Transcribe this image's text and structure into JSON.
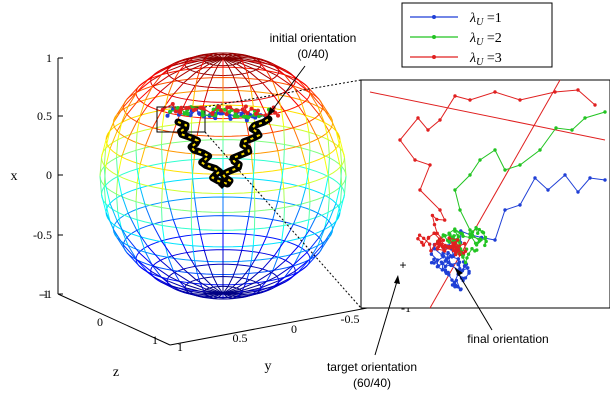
{
  "chart_data": {
    "type": "line",
    "projection": "3d-sphere",
    "grid": "spherical wireframe colored by x (blue at -1, red at +1)",
    "axes": {
      "x": {
        "label": "x",
        "ticks": [
          "1",
          "0.5",
          "0",
          "-0.5",
          "-1"
        ],
        "range": [
          -1,
          1
        ]
      },
      "y": {
        "label": "y",
        "ticks": [
          "1",
          "0.5",
          "0",
          "-0.5",
          "-1"
        ],
        "range": [
          -1,
          1
        ]
      },
      "z": {
        "label": "z",
        "ticks": [
          "-1",
          "0",
          "1"
        ],
        "range": [
          -1,
          1
        ]
      }
    },
    "legend": {
      "placement": "top-right",
      "entries": [
        {
          "symbol": "λ",
          "sub": "U",
          "suffix": " =1",
          "color": "#1f3fd6"
        },
        {
          "symbol": "λ",
          "sub": "U",
          "suffix": " =2",
          "color": "#22c422"
        },
        {
          "symbol": "λ",
          "sub": "U",
          "suffix": " =3",
          "color": "#e02020"
        }
      ]
    },
    "annotations": [
      {
        "lines": [
          "initial orientation",
          "(0/40)"
        ]
      },
      {
        "lines": [
          "final orientation"
        ]
      },
      {
        "lines": [
          "target orientation",
          "(60/40)"
        ]
      }
    ],
    "series": [
      {
        "color": "#1f3fd6",
        "marker": "dot"
      },
      {
        "color": "#22c422",
        "marker": "dot"
      },
      {
        "color": "#e02020",
        "marker": "dot"
      }
    ],
    "inset": {
      "type": "zoom",
      "description_series": [
        "#1f3fd6",
        "#22c422",
        "#e02020"
      ]
    }
  }
}
